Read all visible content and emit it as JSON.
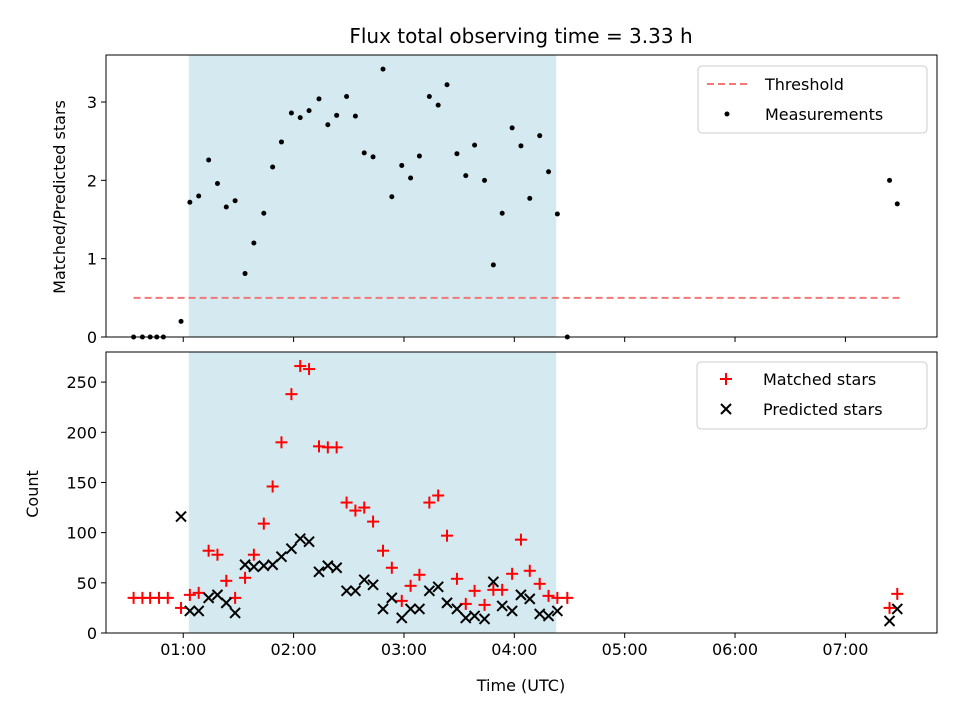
{
  "chart_data": [
    {
      "type": "scatter",
      "title": "Flux total observing time = 3.33 h",
      "xlabel": "",
      "ylabel": "Matched/Predicted stars",
      "x_unit": "hours UTC",
      "xlim": [
        0.3,
        7.83
      ],
      "ylim": [
        0,
        3.6
      ],
      "yticks": [
        "0",
        "1",
        "2",
        "3"
      ],
      "shaded_span": [
        1.05,
        4.38
      ],
      "shade_color": "#d4eaf0",
      "legend_position": "upper right",
      "threshold": {
        "name": "Threshold",
        "y": 0.5,
        "x_range": [
          0.55,
          7.5
        ],
        "color": "#f07878"
      },
      "series": [
        {
          "name": "Measurements",
          "color": "#000000",
          "x": [
            0.55,
            0.63,
            0.7,
            0.76,
            0.82,
            0.98,
            1.06,
            1.14,
            1.23,
            1.31,
            1.39,
            1.47,
            1.56,
            1.64,
            1.73,
            1.81,
            1.89,
            1.98,
            2.06,
            2.14,
            2.23,
            2.31,
            2.39,
            2.48,
            2.56,
            2.64,
            2.72,
            2.81,
            2.89,
            2.98,
            3.06,
            3.14,
            3.23,
            3.31,
            3.39,
            3.48,
            3.56,
            3.64,
            3.73,
            3.81,
            3.89,
            3.98,
            4.06,
            4.14,
            4.23,
            4.31,
            4.39,
            4.48,
            7.4,
            7.47
          ],
          "y": [
            0,
            0,
            0,
            0,
            0,
            0.2,
            1.72,
            1.8,
            2.26,
            1.96,
            1.66,
            1.74,
            0.81,
            1.2,
            1.58,
            2.17,
            2.49,
            2.86,
            2.8,
            2.89,
            3.04,
            2.71,
            2.83,
            3.07,
            2.82,
            2.35,
            2.3,
            3.42,
            1.79,
            2.19,
            2.03,
            2.31,
            3.07,
            2.96,
            3.22,
            2.34,
            2.06,
            2.45,
            2.0,
            0.92,
            1.58,
            2.67,
            2.44,
            1.77,
            2.57,
            2.11,
            1.57,
            0,
            2.0,
            1.7
          ]
        }
      ]
    },
    {
      "type": "scatter",
      "title": "",
      "xlabel": "Time (UTC)",
      "ylabel": "Count",
      "x_unit": "hours UTC",
      "xlim": [
        0.3,
        7.83
      ],
      "ylim": [
        0,
        280
      ],
      "xticks": [
        "01:00",
        "02:00",
        "03:00",
        "04:00",
        "05:00",
        "06:00",
        "07:00"
      ],
      "yticks": [
        "0",
        "50",
        "100",
        "150",
        "200",
        "250"
      ],
      "shaded_span": [
        1.05,
        4.38
      ],
      "legend_position": "upper right",
      "series": [
        {
          "name": "Matched stars",
          "marker": "plus",
          "color": "#ff0000",
          "x": [
            0.55,
            0.63,
            0.7,
            0.78,
            0.86,
            0.98,
            1.06,
            1.14,
            1.23,
            1.31,
            1.39,
            1.47,
            1.56,
            1.64,
            1.73,
            1.81,
            1.89,
            1.98,
            2.06,
            2.14,
            2.23,
            2.31,
            2.39,
            2.48,
            2.56,
            2.64,
            2.72,
            2.81,
            2.89,
            2.98,
            3.06,
            3.14,
            3.23,
            3.31,
            3.39,
            3.48,
            3.56,
            3.64,
            3.73,
            3.81,
            3.89,
            3.98,
            4.06,
            4.14,
            4.23,
            4.31,
            4.39,
            4.48,
            7.4,
            7.47
          ],
          "y": [
            35,
            35,
            35,
            35,
            35,
            25,
            38,
            40,
            82,
            78,
            52,
            35,
            55,
            78,
            109,
            146,
            190,
            238,
            266,
            263,
            186,
            185,
            185,
            130,
            122,
            125,
            111,
            82,
            65,
            32,
            47,
            58,
            130,
            137,
            97,
            54,
            29,
            42,
            28,
            43,
            43,
            59,
            93,
            62,
            49,
            37,
            35,
            35,
            25,
            39
          ]
        },
        {
          "name": "Predicted stars",
          "marker": "x",
          "color": "#000000",
          "x": [
            0.98,
            1.06,
            1.14,
            1.23,
            1.31,
            1.39,
            1.47,
            1.56,
            1.64,
            1.73,
            1.81,
            1.89,
            1.98,
            2.06,
            2.14,
            2.23,
            2.31,
            2.39,
            2.48,
            2.56,
            2.64,
            2.72,
            2.81,
            2.89,
            2.98,
            3.06,
            3.14,
            3.23,
            3.31,
            3.39,
            3.48,
            3.56,
            3.64,
            3.73,
            3.81,
            3.89,
            3.98,
            4.06,
            4.14,
            4.23,
            4.31,
            4.39,
            7.4,
            7.47
          ],
          "y": [
            116,
            22,
            22,
            35,
            38,
            30,
            20,
            68,
            66,
            67,
            68,
            76,
            84,
            94,
            91,
            61,
            67,
            65,
            42,
            42,
            53,
            48,
            24,
            35,
            15,
            24,
            24,
            42,
            46,
            30,
            24,
            15,
            17,
            14,
            51,
            27,
            22,
            38,
            34,
            19,
            17,
            22,
            12,
            24
          ]
        }
      ]
    }
  ]
}
